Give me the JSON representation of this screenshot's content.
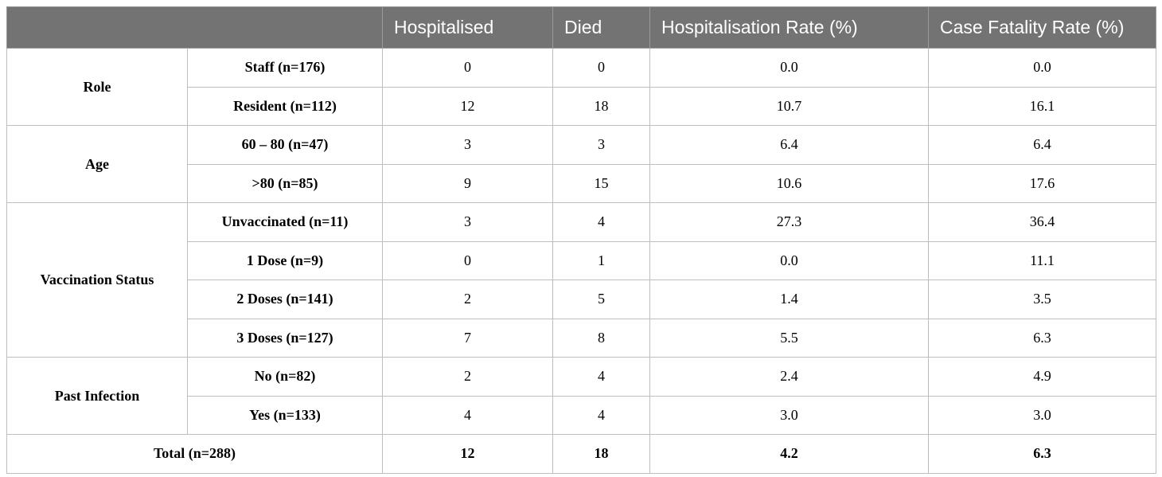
{
  "headers": [
    "",
    "Hospitalised",
    "Died",
    "Hospitalisation Rate (%)",
    "Case Fatality Rate (%)"
  ],
  "groups": [
    {
      "label": "Role",
      "rows": [
        {
          "label": "Staff (n=176)",
          "hospitalised": "0",
          "died": "0",
          "hosp_rate": "0.0",
          "cfr": "0.0"
        },
        {
          "label": "Resident (n=112)",
          "hospitalised": "12",
          "died": "18",
          "hosp_rate": "10.7",
          "cfr": "16.1"
        }
      ]
    },
    {
      "label": "Age",
      "rows": [
        {
          "label": "60 – 80 (n=47)",
          "hospitalised": "3",
          "died": "3",
          "hosp_rate": "6.4",
          "cfr": "6.4"
        },
        {
          "label": ">80 (n=85)",
          "hospitalised": "9",
          "died": "15",
          "hosp_rate": "10.6",
          "cfr": "17.6"
        }
      ]
    },
    {
      "label": "Vaccination Status",
      "rows": [
        {
          "label": "Unvaccinated (n=11)",
          "hospitalised": "3",
          "died": "4",
          "hosp_rate": "27.3",
          "cfr": "36.4"
        },
        {
          "label": "1 Dose (n=9)",
          "hospitalised": "0",
          "died": "1",
          "hosp_rate": "0.0",
          "cfr": "11.1"
        },
        {
          "label": "2 Doses (n=141)",
          "hospitalised": "2",
          "died": "5",
          "hosp_rate": "1.4",
          "cfr": "3.5"
        },
        {
          "label": "3 Doses (n=127)",
          "hospitalised": "7",
          "died": "8",
          "hosp_rate": "5.5",
          "cfr": "6.3"
        }
      ]
    },
    {
      "label": "Past Infection",
      "rows": [
        {
          "label": "No (n=82)",
          "hospitalised": "2",
          "died": "4",
          "hosp_rate": "2.4",
          "cfr": "4.9"
        },
        {
          "label": "Yes (n=133)",
          "hospitalised": "4",
          "died": "4",
          "hosp_rate": "3.0",
          "cfr": "3.0"
        }
      ]
    }
  ],
  "total": {
    "label": "Total (n=288)",
    "hospitalised": "12",
    "died": "18",
    "hosp_rate": "4.2",
    "cfr": "6.3"
  },
  "colors": {
    "header_bg": "#737373",
    "header_text": "#ffffff",
    "border": "#bdbdbd"
  }
}
